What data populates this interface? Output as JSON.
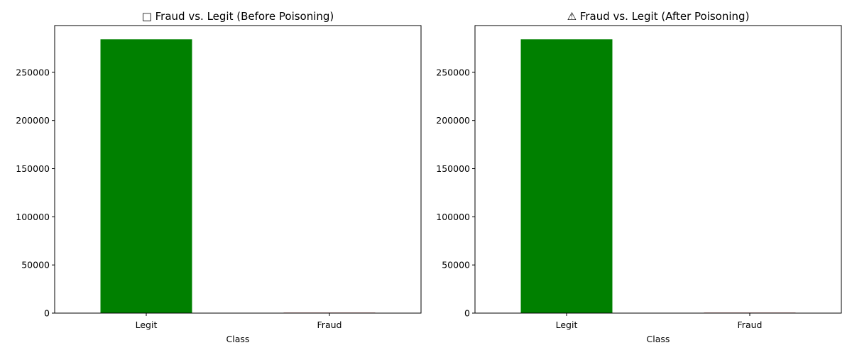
{
  "chart_data": [
    {
      "type": "bar",
      "title": "□ Fraud vs. Legit (Before Poisoning)",
      "xlabel": "Class",
      "ylabel": "",
      "categories": [
        "Legit",
        "Fraud"
      ],
      "values": [
        284315,
        492
      ],
      "ylim": [
        0,
        298553
      ],
      "yticks": [
        0,
        50000,
        100000,
        150000,
        200000,
        250000
      ],
      "ytick_labels": [
        "0",
        "50000",
        "100000",
        "150000",
        "200000",
        "250000"
      ],
      "bar_colors": [
        "#008000",
        "#800000"
      ],
      "grid": false,
      "legend": "none"
    },
    {
      "type": "bar",
      "title": "⚠ Fraud vs. Legit (After Poisoning)",
      "xlabel": "Class",
      "ylabel": "",
      "categories": [
        "Legit",
        "Fraud"
      ],
      "values": [
        284315,
        492
      ],
      "ylim": [
        0,
        298553
      ],
      "yticks": [
        0,
        50000,
        100000,
        150000,
        200000,
        250000
      ],
      "ytick_labels": [
        "0",
        "50000",
        "100000",
        "150000",
        "200000",
        "250000"
      ],
      "bar_colors": [
        "#008000",
        "#800000"
      ],
      "grid": false,
      "legend": "none"
    }
  ]
}
